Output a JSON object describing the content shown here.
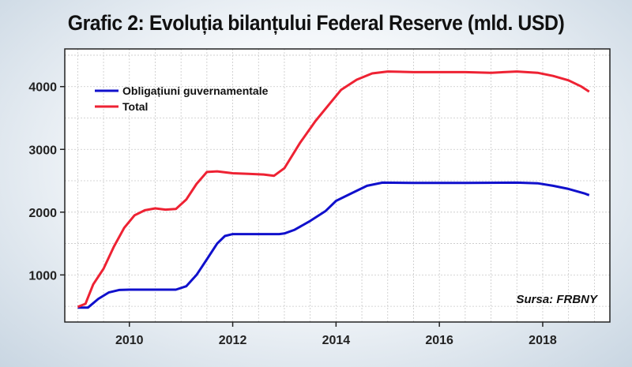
{
  "chart_data": {
    "type": "line",
    "title": "Grafic 2: Evoluția bilanțului Federal Reserve (mld. USD)",
    "source": "Sursa: FRBNY",
    "xlabel": "",
    "ylabel": "",
    "xlim": [
      2008.75,
      2019.3
    ],
    "ylim": [
      250,
      4600
    ],
    "x_ticks": [
      2010,
      2012,
      2014,
      2016,
      2018
    ],
    "y_ticks": [
      1000,
      2000,
      3000,
      4000
    ],
    "grid": true,
    "legend_position": "top-left",
    "series": [
      {
        "name": "Obligațiuni guvernamentale",
        "color": "#1010cc",
        "points": [
          [
            2009.0,
            480
          ],
          [
            2009.2,
            480
          ],
          [
            2009.4,
            620
          ],
          [
            2009.6,
            720
          ],
          [
            2009.8,
            760
          ],
          [
            2010.0,
            765
          ],
          [
            2010.5,
            765
          ],
          [
            2010.9,
            765
          ],
          [
            2011.1,
            820
          ],
          [
            2011.3,
            1000
          ],
          [
            2011.5,
            1250
          ],
          [
            2011.7,
            1500
          ],
          [
            2011.85,
            1620
          ],
          [
            2012.0,
            1650
          ],
          [
            2012.5,
            1650
          ],
          [
            2012.9,
            1650
          ],
          [
            2013.0,
            1660
          ],
          [
            2013.2,
            1720
          ],
          [
            2013.5,
            1860
          ],
          [
            2013.8,
            2020
          ],
          [
            2014.0,
            2180
          ],
          [
            2014.3,
            2300
          ],
          [
            2014.6,
            2420
          ],
          [
            2014.9,
            2470
          ],
          [
            2015.5,
            2465
          ],
          [
            2016.5,
            2465
          ],
          [
            2017.5,
            2470
          ],
          [
            2017.9,
            2460
          ],
          [
            2018.2,
            2420
          ],
          [
            2018.5,
            2370
          ],
          [
            2018.8,
            2300
          ],
          [
            2018.9,
            2270
          ]
        ]
      },
      {
        "name": "Total",
        "color": "#ee2233",
        "points": [
          [
            2009.0,
            490
          ],
          [
            2009.15,
            540
          ],
          [
            2009.3,
            850
          ],
          [
            2009.5,
            1100
          ],
          [
            2009.7,
            1450
          ],
          [
            2009.9,
            1750
          ],
          [
            2010.1,
            1950
          ],
          [
            2010.3,
            2030
          ],
          [
            2010.5,
            2060
          ],
          [
            2010.7,
            2040
          ],
          [
            2010.9,
            2050
          ],
          [
            2011.1,
            2200
          ],
          [
            2011.3,
            2450
          ],
          [
            2011.5,
            2640
          ],
          [
            2011.7,
            2650
          ],
          [
            2012.0,
            2620
          ],
          [
            2012.3,
            2610
          ],
          [
            2012.6,
            2600
          ],
          [
            2012.8,
            2580
          ],
          [
            2013.0,
            2700
          ],
          [
            2013.3,
            3100
          ],
          [
            2013.6,
            3450
          ],
          [
            2013.9,
            3750
          ],
          [
            2014.1,
            3950
          ],
          [
            2014.4,
            4110
          ],
          [
            2014.7,
            4210
          ],
          [
            2015.0,
            4240
          ],
          [
            2015.5,
            4230
          ],
          [
            2016.0,
            4230
          ],
          [
            2016.5,
            4230
          ],
          [
            2017.0,
            4220
          ],
          [
            2017.5,
            4240
          ],
          [
            2017.9,
            4220
          ],
          [
            2018.2,
            4170
          ],
          [
            2018.5,
            4100
          ],
          [
            2018.75,
            4000
          ],
          [
            2018.9,
            3920
          ]
        ]
      }
    ]
  }
}
